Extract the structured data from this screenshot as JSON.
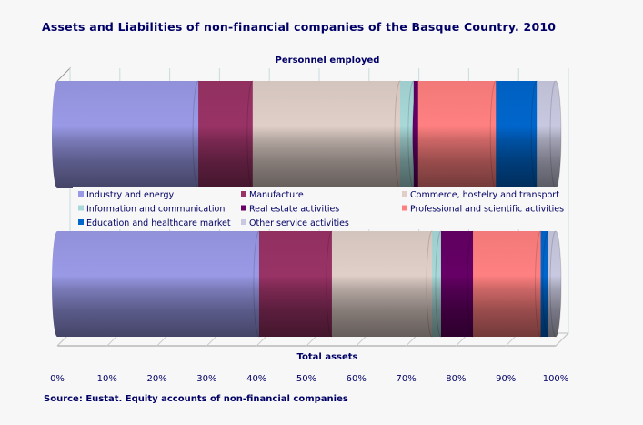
{
  "chart_data": {
    "type": "bar",
    "orientation": "horizontal",
    "stacked": "100%",
    "style": "3d-cylinder",
    "title": "Assets and Liabilities of non-financial companies of the Basque Country.  2010",
    "source": "Source: Eustat. Equity accounts of non-financial companies",
    "categories": [
      "Personnel employed",
      "Total assets"
    ],
    "xlim": [
      0,
      100
    ],
    "x_ticks": [
      "0%",
      "10%",
      "20%",
      "30%",
      "40%",
      "50%",
      "60%",
      "70%",
      "80%",
      "90%",
      "100%"
    ],
    "grid": true,
    "legend_position": "middle",
    "series": [
      {
        "name": "Industry and energy",
        "color": "#9999E6",
        "values": [
          28.3,
          40.5
        ]
      },
      {
        "name": "Manufacture",
        "color": "#993366",
        "values": [
          10.9,
          14.6
        ]
      },
      {
        "name": "Commerce, hostelry and transport",
        "color": "#E0CFC8",
        "values": [
          29.6,
          20.1
        ]
      },
      {
        "name": "Information and communication",
        "color": "#A8D8D8",
        "values": [
          2.7,
          1.8
        ]
      },
      {
        "name": "Real estate activities",
        "color": "#660066",
        "values": [
          0.9,
          6.4
        ]
      },
      {
        "name": "Professional and scientific activities",
        "color": "#FF8080",
        "values": [
          15.6,
          13.6
        ]
      },
      {
        "name": "Education and healthcare market",
        "color": "#0066CC",
        "values": [
          8.2,
          1.5
        ]
      },
      {
        "name": "Other service activities",
        "color": "#C8C8E0",
        "values": [
          3.8,
          1.5
        ]
      }
    ]
  }
}
